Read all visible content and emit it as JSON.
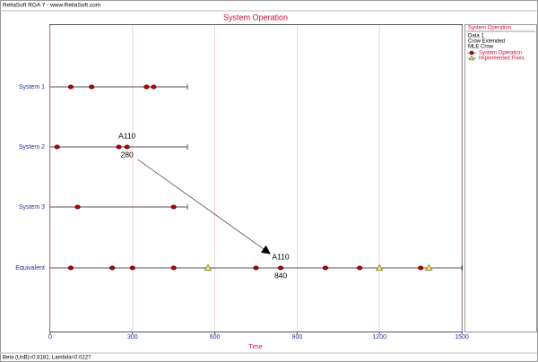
{
  "header": "ReliaSoft RGA 7 - www.ReliaSoft.com",
  "footer": "Beta (UnB)=0.8182, Lambda=0.0227",
  "chart_data": {
    "type": "event",
    "title": "System Operation",
    "xlabel": "Time",
    "xlim": [
      0,
      1500
    ],
    "xticks": [
      0,
      300,
      600,
      900,
      1200,
      1500
    ],
    "grid": true,
    "legend": {
      "title": "System Operation",
      "lines": [
        "Data 1",
        "Crow Extended",
        "MLE Crow"
      ]
    },
    "series": [
      {
        "name": "System Operation",
        "color": "#c00000",
        "marker": "circle"
      },
      {
        "name": "Implemented Fixes",
        "color": "#ffff00",
        "marker": "triangle"
      }
    ],
    "rows": [
      {
        "label": "System 1",
        "end": 500,
        "events": [
          75,
          151,
          351,
          377
        ]
      },
      {
        "label": "System 2",
        "end": 500,
        "events": [
          25,
          250,
          280
        ],
        "annotation": {
          "label": "A110",
          "value": 280
        }
      },
      {
        "label": "System 3",
        "end": 500,
        "events": [
          100,
          450
        ]
      },
      {
        "label": "Equivalent",
        "end": 1500,
        "events": [
          75,
          226,
          300,
          450,
          750,
          840,
          1003,
          1128,
          1350
        ],
        "fixes": [
          575,
          1200,
          1380
        ],
        "annotation": {
          "label": "A110",
          "value": 840
        }
      }
    ]
  }
}
